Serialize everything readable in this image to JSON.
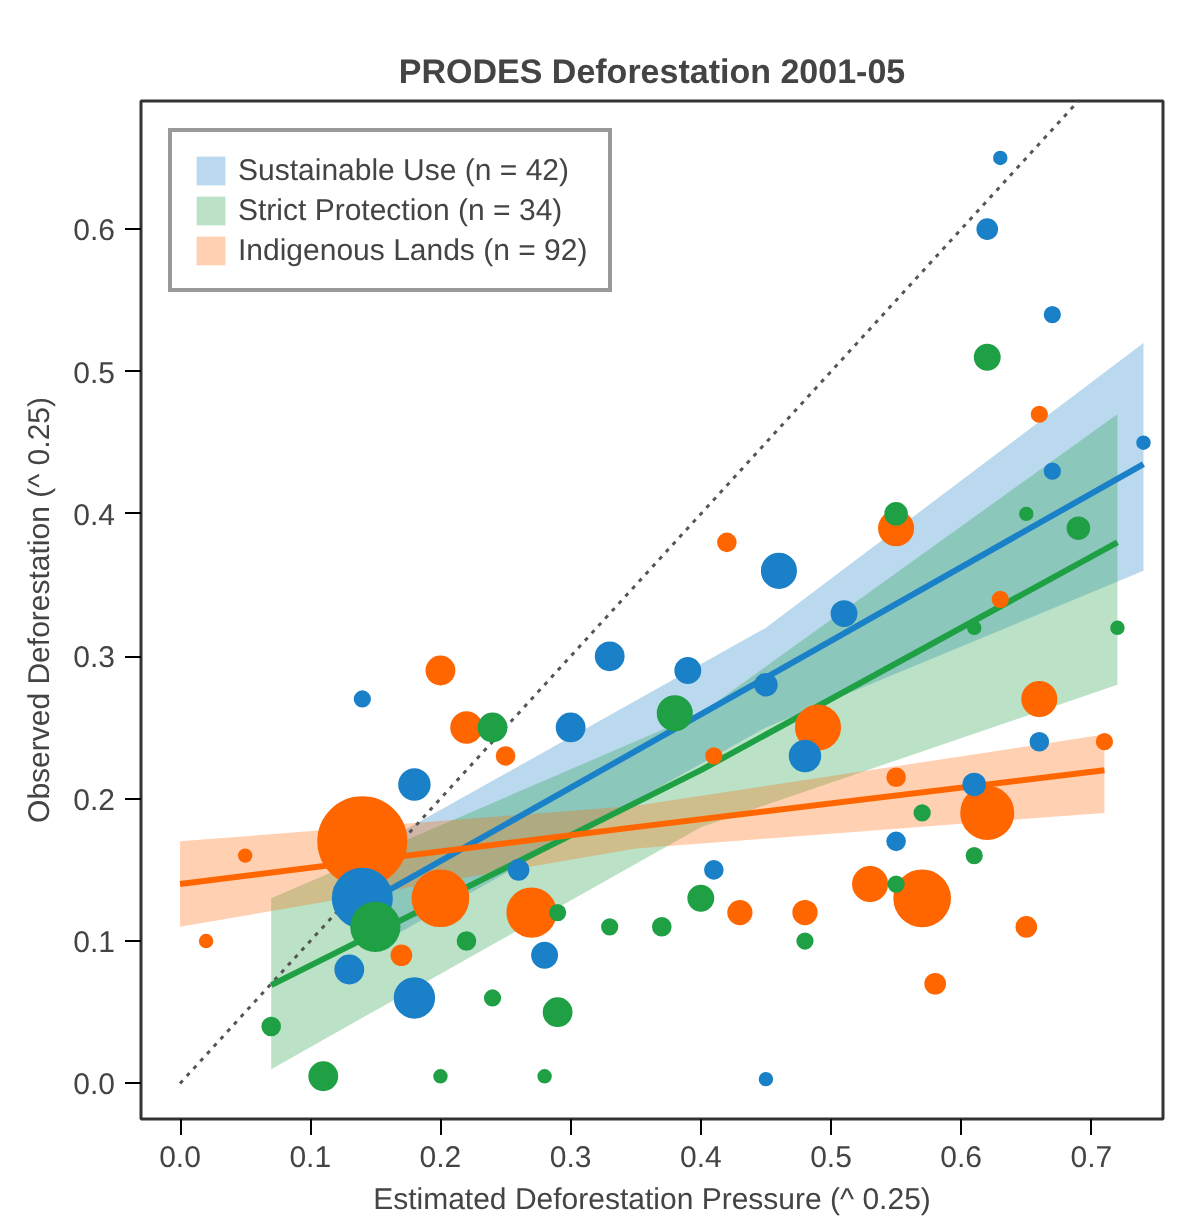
{
  "chart_data": {
    "type": "bubble",
    "title": "PRODES Deforestation 2001-05",
    "xlabel": "Estimated Deforestation Pressure (^ 0.25)",
    "ylabel": "Observed Deforestation (^ 0.25)",
    "xlim": [
      -0.03,
      0.755
    ],
    "ylim": [
      -0.025,
      0.69
    ],
    "xticks": [
      {
        "value": 0,
        "label": "0.0"
      },
      {
        "value": 0.1,
        "label": "0.1"
      },
      {
        "value": 0.2,
        "label": "0.2"
      },
      {
        "value": 0.3,
        "label": "0.3"
      },
      {
        "value": 0.4,
        "label": "0.4"
      },
      {
        "value": 0.5,
        "label": "0.5"
      },
      {
        "value": 0.6,
        "label": "0.6"
      },
      {
        "value": 0.7,
        "label": "0.7"
      }
    ],
    "yticks": [
      {
        "value": 0,
        "label": "0.0"
      },
      {
        "value": 0.1,
        "label": "0.1"
      },
      {
        "value": 0.2,
        "label": "0.2"
      },
      {
        "value": 0.3,
        "label": "0.3"
      },
      {
        "value": 0.4,
        "label": "0.4"
      },
      {
        "value": 0.5,
        "label": "0.5"
      },
      {
        "value": 0.6,
        "label": "0.6"
      }
    ],
    "grid": false,
    "legend": "top left",
    "marker": "circle",
    "series": [
      {
        "type": "line",
        "marker": "none",
        "line_style": "dotted",
        "color": "#555555",
        "x": [
          0,
          0.69
        ],
        "values": [
          0,
          0.69
        ]
      },
      {
        "type": "bubble",
        "color": "#ff6600",
        "x": [
          0.14,
          0.2,
          0.27,
          0.2,
          0.22,
          0.02,
          0.05,
          0.17,
          0.25,
          0.66,
          0.49,
          0.62,
          0.57,
          0.53,
          0.43,
          0.48,
          0.58,
          0.65,
          0.55,
          0.71,
          0.41,
          0.55,
          0.42,
          0.66,
          0.63
        ],
        "values": [
          0.17,
          0.13,
          0.12,
          0.29,
          0.25,
          0.1,
          0.16,
          0.09,
          0.23,
          0.27,
          0.25,
          0.19,
          0.13,
          0.14,
          0.12,
          0.12,
          0.07,
          0.11,
          0.215,
          0.24,
          0.23,
          0.39,
          0.38,
          0.47,
          0.34
        ],
        "sizes": [
          1,
          0.4,
          0.3,
          0.1,
          0.12,
          0.02,
          0.02,
          0.05,
          0.04,
          0.15,
          0.25,
          0.35,
          0.4,
          0.15,
          0.07,
          0.07,
          0.05,
          0.05,
          0.04,
          0.03,
          0.03,
          0.15,
          0.04,
          0.03,
          0.03
        ]
      },
      {
        "type": "bubble",
        "color": "#1a80c8",
        "x": [
          0.14,
          0.18,
          0.13,
          0.3,
          0.18,
          0.33,
          0.28,
          0.26,
          0.14,
          0.48,
          0.39,
          0.45,
          0.61,
          0.66,
          0.55,
          0.41,
          0.51,
          0.45,
          0.62,
          0.63,
          0.67,
          0.46,
          0.67,
          0.74
        ],
        "values": [
          0.13,
          0.06,
          0.08,
          0.25,
          0.21,
          0.3,
          0.09,
          0.15,
          0.27,
          0.23,
          0.29,
          0.28,
          0.21,
          0.24,
          0.17,
          0.15,
          0.33,
          0.003,
          0.6,
          0.65,
          0.54,
          0.36,
          0.43,
          0.45
        ],
        "sizes": [
          0.45,
          0.2,
          0.1,
          0.1,
          0.12,
          0.1,
          0.08,
          0.05,
          0.03,
          0.12,
          0.08,
          0.06,
          0.06,
          0.04,
          0.04,
          0.04,
          0.08,
          0.02,
          0.05,
          0.02,
          0.03,
          0.15,
          0.03,
          0.02
        ]
      },
      {
        "type": "bubble",
        "color": "#1fa045",
        "x": [
          0.15,
          0.11,
          0.24,
          0.29,
          0.07,
          0.22,
          0.24,
          0.33,
          0.29,
          0.2,
          0.28,
          0.38,
          0.4,
          0.37,
          0.48,
          0.55,
          0.61,
          0.57,
          0.72,
          0.61,
          0.62,
          0.55,
          0.69,
          0.65
        ],
        "values": [
          0.11,
          0.005,
          0.25,
          0.05,
          0.04,
          0.1,
          0.06,
          0.11,
          0.12,
          0.005,
          0.005,
          0.26,
          0.13,
          0.11,
          0.1,
          0.14,
          0.16,
          0.19,
          0.32,
          0.32,
          0.51,
          0.4,
          0.39,
          0.4
        ],
        "sizes": [
          0.3,
          0.1,
          0.1,
          0.1,
          0.04,
          0.04,
          0.03,
          0.03,
          0.03,
          0.02,
          0.02,
          0.15,
          0.08,
          0.04,
          0.03,
          0.03,
          0.03,
          0.03,
          0.02,
          0.02,
          0.08,
          0.06,
          0.06,
          0.02
        ]
      },
      {
        "type": "line",
        "marker": "none",
        "name": "Sustainable Use (n = 42)",
        "color": "#1a80c8",
        "x": [
          0.157,
          0.45,
          0.74
        ],
        "values": [
          0.134,
          0.285,
          0.435
        ],
        "lower": [
          0.1,
          0.25,
          0.36
        ],
        "upper": [
          0.17,
          0.32,
          0.52
        ]
      },
      {
        "type": "line",
        "marker": "none",
        "name": "Strict Protection (n = 34)",
        "color": "#1fa045",
        "x": [
          0.07,
          0.4,
          0.72
        ],
        "values": [
          0.069,
          0.22,
          0.38
        ],
        "lower": [
          0.01,
          0.18,
          0.28
        ],
        "upper": [
          0.13,
          0.26,
          0.47
        ]
      },
      {
        "type": "line",
        "marker": "none",
        "name": "Indigenous Lands (n = 92)",
        "color": "#ff6600",
        "x": [
          0,
          0.35,
          0.71
        ],
        "values": [
          0.14,
          0.18,
          0.22
        ],
        "lower": [
          0.11,
          0.165,
          0.19
        ],
        "upper": [
          0.17,
          0.195,
          0.245
        ]
      }
    ]
  }
}
